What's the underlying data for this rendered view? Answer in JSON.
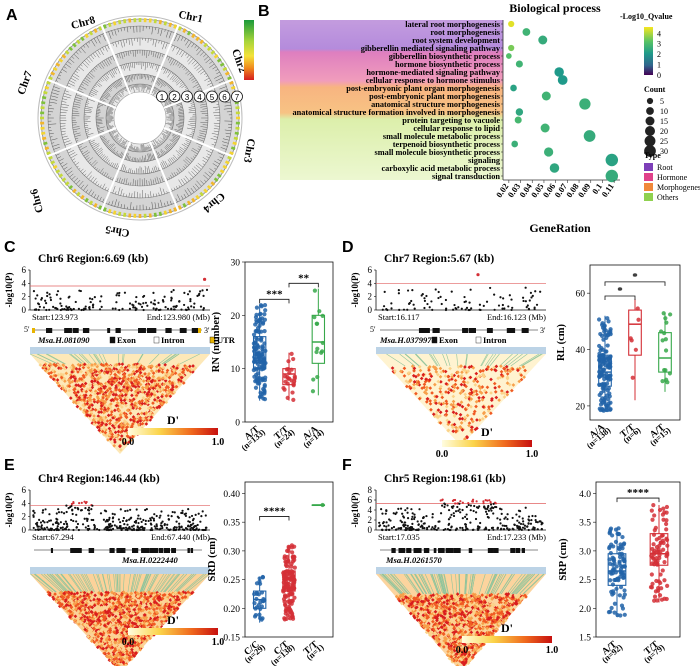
{
  "figure": {
    "panel_letters": [
      "A",
      "B",
      "C",
      "D",
      "E",
      "F"
    ]
  },
  "panel_a": {
    "chromosomes": [
      "Chr1",
      "Chr2",
      "Chr3",
      "Chr4",
      "Chr5",
      "Chr6",
      "Chr7",
      "Chr8"
    ],
    "ring_numbers": [
      "1",
      "2",
      "3",
      "4",
      "5",
      "6",
      "7"
    ]
  },
  "chart_data": [
    {
      "panel": "B",
      "type": "scatter",
      "title": "Biological process",
      "xlabel": "GeneRation",
      "xlim": [
        0.015,
        0.115
      ],
      "x_ticks": [
        "0.02",
        "0.03",
        "0.04",
        "0.05",
        "0.06",
        "0.07",
        "0.08",
        "0.09",
        "0.1",
        "0.11"
      ],
      "x_tick_values": [
        0.02,
        0.03,
        0.04,
        0.05,
        0.06,
        0.07,
        0.08,
        0.09,
        0.1,
        0.11
      ],
      "color_legend_title": "-Log10_Qvalue",
      "color_ticks": [
        "4",
        "3",
        "2",
        "1",
        "0"
      ],
      "color_tick_values": [
        4,
        3,
        2,
        1,
        0
      ],
      "size_legend_title": "Count",
      "size_legend": [
        "5",
        "10",
        "15",
        "20",
        "25",
        "30"
      ],
      "size_legend_values": [
        5,
        10,
        15,
        20,
        25,
        30
      ],
      "type_legend_title": "Type",
      "type_legend": [
        "Root",
        "Hormone",
        "Morphogenesis",
        "Others"
      ],
      "type_colors": {
        "Root": "#7d3fb8",
        "Hormone": "#e0418a",
        "Morphogenesis": "#f0883a",
        "Others": "#8fd14f"
      },
      "terms": [
        {
          "label": "lateral root morphogenesis",
          "type": "Root",
          "x": 0.022,
          "count": 4,
          "q": 4.3
        },
        {
          "label": "root morphogenesis",
          "type": "Root",
          "x": 0.035,
          "count": 8,
          "q": 2.6
        },
        {
          "label": "root system development",
          "type": "Root",
          "x": 0.049,
          "count": 12,
          "q": 2.4
        },
        {
          "label": "gibberellin mediated signaling pathway",
          "type": "Hormone",
          "x": 0.022,
          "count": 4,
          "q": 3.3
        },
        {
          "label": "gibberellin biosynthetic process",
          "type": "Hormone",
          "x": 0.02,
          "count": 3,
          "q": 2.9
        },
        {
          "label": "hormone biosynthetic process",
          "type": "Hormone",
          "x": 0.029,
          "count": 6,
          "q": 2.6
        },
        {
          "label": "hormone-mediated signaling pathway",
          "type": "Hormone",
          "x": 0.063,
          "count": 14,
          "q": 2.0
        },
        {
          "label": "cellular response to hormone stimulus",
          "type": "Hormone",
          "x": 0.066,
          "count": 15,
          "q": 2.0
        },
        {
          "label": "post-embryonic plant organ morphogenesis",
          "type": "Morphogenesis",
          "x": 0.024,
          "count": 5,
          "q": 2.2
        },
        {
          "label": "post-embryonic plant morphogenesis",
          "type": "Morphogenesis",
          "x": 0.052,
          "count": 12,
          "q": 2.6
        },
        {
          "label": "anatomical structure morphogenesis",
          "type": "Morphogenesis",
          "x": 0.085,
          "count": 22,
          "q": 2.5
        },
        {
          "label": "anatomical structure formation involved in morphogenesis",
          "type": "Morphogenesis",
          "x": 0.029,
          "count": 7,
          "q": 2.3
        },
        {
          "label": "protein targeting to vacuole",
          "type": "Others",
          "x": 0.028,
          "count": 6,
          "q": 2.7
        },
        {
          "label": "cellular response to lipid",
          "type": "Others",
          "x": 0.051,
          "count": 12,
          "q": 2.6
        },
        {
          "label": "small molecule metabolic process",
          "type": "Others",
          "x": 0.089,
          "count": 24,
          "q": 2.4
        },
        {
          "label": "terpenoid biosynthetic process",
          "type": "Others",
          "x": 0.025,
          "count": 5,
          "q": 2.5
        },
        {
          "label": "small molecule biosynthetic process",
          "type": "Others",
          "x": 0.054,
          "count": 13,
          "q": 2.5
        },
        {
          "label": "signaling",
          "type": "Others",
          "x": 0.108,
          "count": 28,
          "q": 2.2
        },
        {
          "label": "carboxylic acid metabolic process",
          "type": "Others",
          "x": 0.059,
          "count": 14,
          "q": 2.3
        },
        {
          "label": "signal transduction",
          "type": "Others",
          "x": 0.108,
          "count": 28,
          "q": 2.4
        }
      ]
    },
    {
      "panel": "C",
      "type": "box",
      "title": "Chr6 Region:6.69 (kb)",
      "start_label": "Start:123.973",
      "end_label": "End:123.980 (Mb)",
      "gene_label": "Msa.H.081090",
      "legend_items": [
        "Exon",
        "Intron",
        "UTR"
      ],
      "manhattan_yticks": [
        "0",
        "2",
        "4",
        "6"
      ],
      "manhattan_ylim": [
        0,
        6
      ],
      "manhattan_ylabel": "-log10(P)",
      "ld_legend_title": "D'",
      "ld_legend_ticks": [
        "0.0",
        "1.0"
      ],
      "strand_start": "5'",
      "strand_end": "3'",
      "ylabel": "RN (number)",
      "ylim": [
        0,
        30
      ],
      "y_ticks": [
        "0",
        "10",
        "20",
        "30"
      ],
      "y_tick_values": [
        0,
        10,
        20,
        30
      ],
      "groups": [
        {
          "name": "A/T",
          "n": "(n=133)",
          "q1": 10,
          "median": 12,
          "q3": 16,
          "whisker_low": 4,
          "whisker_high": 22,
          "color": "#2163a8"
        },
        {
          "name": "T/T",
          "n": "(n=24)",
          "q1": 7,
          "median": 9,
          "q3": 10,
          "whisker_low": 4,
          "whisker_high": 13,
          "color": "#d42f36"
        },
        {
          "name": "A/A",
          "n": "(n=14)",
          "q1": 11,
          "median": 15,
          "q3": 20,
          "whisker_low": 5,
          "whisker_high": 25,
          "color": "#37a84a"
        }
      ],
      "significance": [
        {
          "from": 0,
          "to": 1,
          "label": "***",
          "y": 23
        },
        {
          "from": 1,
          "to": 2,
          "label": "**",
          "y": 26
        }
      ]
    },
    {
      "panel": "D",
      "type": "box",
      "title": "Chr7  Region:5.67 (kb)",
      "start_label": "Start:16.117",
      "end_label": "End:16.123 (Mb)",
      "gene_label": "Msa.H.0379970",
      "legend_items": [
        "Exon",
        "Intron"
      ],
      "manhattan_yticks": [
        "0",
        "2",
        "4",
        "6"
      ],
      "manhattan_ylim": [
        0,
        6
      ],
      "manhattan_ylabel": "-log10(P)",
      "ld_legend_title": "D'",
      "ld_legend_ticks": [
        "0.0",
        "1.0"
      ],
      "strand_start": "5'",
      "strand_end": "3'",
      "ylabel": "RL (cm)",
      "ylim": [
        15,
        70
      ],
      "y_ticks": [
        "20",
        "40",
        "60"
      ],
      "y_tick_values": [
        20,
        40,
        60
      ],
      "groups": [
        {
          "name": "A/A",
          "n": "(n=138)",
          "q1": 27,
          "median": 32,
          "q3": 38,
          "whisker_low": 18,
          "whisker_high": 52,
          "color": "#2163a8"
        },
        {
          "name": "T/T",
          "n": "(n=6)",
          "q1": 38,
          "median": 49,
          "q3": 54,
          "whisker_low": 22,
          "whisker_high": 58,
          "color": "#d42f36"
        },
        {
          "name": "A/T",
          "n": "(n=15)",
          "q1": 32,
          "median": 37,
          "q3": 46,
          "whisker_low": 25,
          "whisker_high": 53,
          "color": "#37a84a"
        }
      ],
      "significance": [
        {
          "from": 0,
          "to": 1,
          "label": "*",
          "y": 59
        },
        {
          "from": 0,
          "to": 2,
          "label": "*",
          "y": 64
        }
      ]
    },
    {
      "panel": "E",
      "type": "box",
      "title": "Chr4 Region:146.44 (kb)",
      "start_label": "Start:67.294",
      "end_label": "End:67.440 (Mb)",
      "gene_label": "Msa.H.0222440",
      "manhattan_yticks": [
        "0",
        "2",
        "4",
        "6"
      ],
      "manhattan_ylim": [
        0,
        6
      ],
      "manhattan_ylabel": "-log10(P)",
      "ld_legend_title": "D'",
      "ld_legend_ticks": [
        "0.0",
        "1.0"
      ],
      "ylabel": "SRD (cm)",
      "ylim": [
        0.15,
        0.42
      ],
      "y_ticks": [
        "0.15",
        "0.20",
        "0.25",
        "0.30",
        "0.35",
        "0.40"
      ],
      "y_tick_values": [
        0.15,
        0.2,
        0.25,
        0.3,
        0.35,
        0.4
      ],
      "groups": [
        {
          "name": "C/C",
          "n": "(n=29)",
          "q1": 0.2,
          "median": 0.215,
          "q3": 0.23,
          "whisker_low": 0.175,
          "whisker_high": 0.255,
          "color": "#2163a8"
        },
        {
          "name": "C/T",
          "n": "(n=138)",
          "q1": 0.23,
          "median": 0.25,
          "q3": 0.265,
          "whisker_low": 0.18,
          "whisker_high": 0.31,
          "color": "#d42f36"
        },
        {
          "name": "T/T",
          "n": "(n=1)",
          "q1": 0.38,
          "median": 0.38,
          "q3": 0.38,
          "whisker_low": 0.38,
          "whisker_high": 0.38,
          "color": "#37a84a"
        }
      ],
      "significance": [
        {
          "from": 0,
          "to": 1,
          "label": "****",
          "y": 0.36
        }
      ]
    },
    {
      "panel": "F",
      "type": "box",
      "title": "Chr5 Region:198.61 (kb)",
      "start_label": "Start:17.035",
      "end_label": "End:17.233 (Mb)",
      "gene_label": "Msa.H.0261570",
      "manhattan_yticks": [
        "0",
        "2",
        "4",
        "6",
        "8"
      ],
      "manhattan_ylim": [
        0,
        8
      ],
      "manhattan_ylabel": "-log10(P)",
      "ld_legend_title": "D'",
      "ld_legend_ticks": [
        "0.0",
        "1.0"
      ],
      "ylabel": "SRP (cm)",
      "ylim": [
        1.5,
        4.2
      ],
      "y_ticks": [
        "1.5",
        "2.0",
        "2.5",
        "3.0",
        "3.5",
        "4.0"
      ],
      "y_tick_values": [
        1.5,
        2.0,
        2.5,
        3.0,
        3.5,
        4.0
      ],
      "groups": [
        {
          "name": "A/T",
          "n": "(n=92)",
          "q1": 2.4,
          "median": 2.65,
          "q3": 2.95,
          "whisker_low": 1.85,
          "whisker_high": 3.4,
          "color": "#2163a8"
        },
        {
          "name": "T/T",
          "n": "(n=79)",
          "q1": 2.75,
          "median": 2.95,
          "q3": 3.3,
          "whisker_low": 2.1,
          "whisker_high": 3.8,
          "color": "#d42f36"
        }
      ],
      "significance": [
        {
          "from": 0,
          "to": 1,
          "label": "****",
          "y": 3.92
        }
      ]
    }
  ]
}
